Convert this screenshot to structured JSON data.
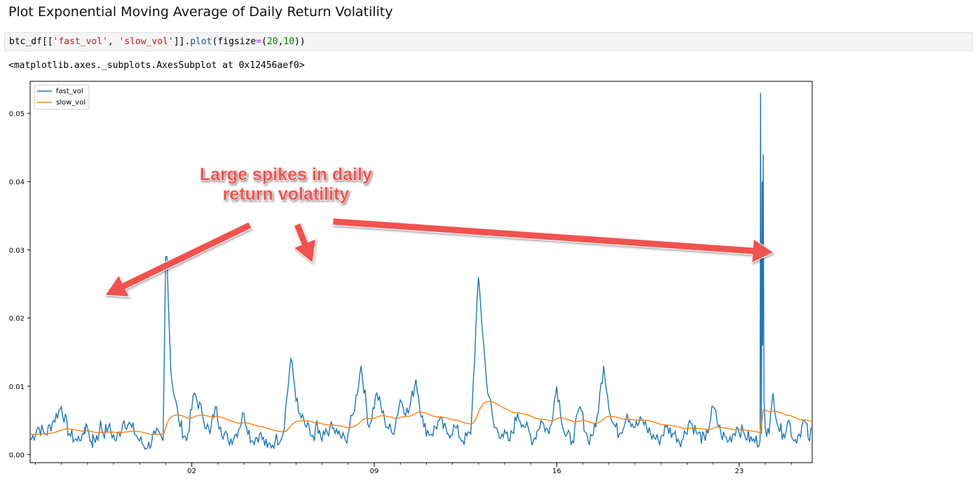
{
  "page": {
    "heading": "Plot Exponential Moving Average of Daily Return Volatility"
  },
  "code_cell": {
    "prefix": "btc_df[[",
    "str1": "'fast_vol'",
    "sep": ", ",
    "str2": "'slow_vol'",
    "mid": "]].",
    "fn": "plot",
    "paren_open": "(figsize",
    "op": "=",
    "paren2": "(",
    "num1": "20",
    "comma": ",",
    "num2": "10",
    "close": "))"
  },
  "output": {
    "text": "<matplotlib.axes._subplots.AxesSubplot at 0x12456aef0>"
  },
  "annotation": {
    "line1": "Large spikes in daily",
    "line2": "return volatility",
    "color": "#f0524f"
  },
  "chart_data": {
    "type": "line",
    "ylim": [
      0,
      0.055
    ],
    "xlim": [
      0,
      30
    ],
    "yticks": [
      "0.00",
      "0.01",
      "0.02",
      "0.03",
      "0.04",
      "0.05"
    ],
    "ytick_values": [
      0,
      0.01,
      0.02,
      0.03,
      0.04,
      0.05
    ],
    "xtick_labels": [
      "02",
      "09",
      "16",
      "23"
    ],
    "xtick_values": [
      6.2,
      13.2,
      20.2,
      27.2
    ],
    "legend_position": "top-left",
    "grid": false,
    "series": [
      {
        "name": "fast_vol",
        "color": "#1f77b4",
        "x": [
          0,
          0.3,
          0.6,
          0.9,
          1.2,
          1.5,
          1.8,
          2.1,
          2.4,
          2.7,
          2.0,
          2.05,
          2.1,
          2.2,
          2.4,
          2.6,
          2.8,
          3.0,
          3.3,
          3.6,
          3.9,
          4.2,
          4.5,
          4.8,
          5.1,
          5.2,
          5.25,
          5.4,
          5.7,
          6.0,
          6.3,
          6.6,
          6.9,
          7.1,
          7.3,
          7.6,
          7.9,
          8.2,
          8.5,
          8.8,
          9.1,
          9.4,
          9.7,
          10.0,
          10.3,
          10.6,
          10.9,
          11.0,
          11.05,
          11.2,
          11.5,
          11.8,
          12.1,
          12.4,
          12.7,
          13.0,
          13.3,
          13.6,
          13.9,
          14.2,
          14.5,
          14.8,
          15.1,
          15.4,
          15.7,
          16.0,
          16.3,
          16.6,
          16.9,
          17.2,
          17.5,
          17.8,
          18.1,
          18.4,
          18.7,
          19.0,
          19.3,
          19.6,
          19.9,
          20.2,
          20.5,
          20.8,
          21.1,
          21.4,
          21.7,
          22.0,
          22.3,
          22.6,
          22.9,
          23.2,
          23.5,
          23.8,
          24.1,
          24.4,
          24.7,
          25.0,
          25.3,
          25.6,
          25.9,
          26.2,
          26.5,
          26.8,
          27.1,
          27.4,
          27.7,
          28.0,
          28.05,
          28.1,
          28.15,
          28.2,
          28.35,
          28.5,
          28.7,
          28.9,
          29.1,
          29.3,
          29.5,
          29.7,
          29.9,
          30.0
        ],
        "values": [
          0.002,
          0.004,
          0.003,
          0.005,
          0.007,
          0.003,
          0.002,
          0.004,
          0.001,
          0.005,
          0.003,
          0.003,
          0.003,
          0.004,
          0.003,
          0.002,
          0.003,
          0.004,
          0.002,
          0.005,
          0.004,
          0.002,
          0.001,
          0.003,
          0.002,
          0.029,
          0.029,
          0.012,
          0.005,
          0.002,
          0.009,
          0.006,
          0.003,
          0.007,
          0.004,
          0.002,
          0.003,
          0.006,
          0.002,
          0.003,
          0.001,
          0.002,
          0.003,
          0.014,
          0.006,
          0.004,
          0.002,
          0.005,
          0.003,
          0.002,
          0.004,
          0.003,
          0.002,
          0.006,
          0.013,
          0.004,
          0.009,
          0.005,
          0.003,
          0.008,
          0.006,
          0.011,
          0.004,
          0.003,
          0.005,
          0.003,
          0.004,
          0.002,
          0.003,
          0.026,
          0.011,
          0.004,
          0.003,
          0.002,
          0.006,
          0.004,
          0.002,
          0.005,
          0.003,
          0.01,
          0.003,
          0.002,
          0.007,
          0.002,
          0.004,
          0.013,
          0.005,
          0.003,
          0.006,
          0.004,
          0.005,
          0.003,
          0.002,
          0.004,
          0.003,
          0.002,
          0.005,
          0.003,
          0.002,
          0.007,
          0.003,
          0.002,
          0.004,
          0.003,
          0.002,
          0.002,
          0.003,
          0.016,
          0.008,
          0.004,
          0.003,
          0.009,
          0.004,
          0.003,
          0.005,
          0.002,
          0.003,
          0.005,
          0.002,
          0.004
        ],
        "note_ignored": ""
      }
    ]
  }
}
